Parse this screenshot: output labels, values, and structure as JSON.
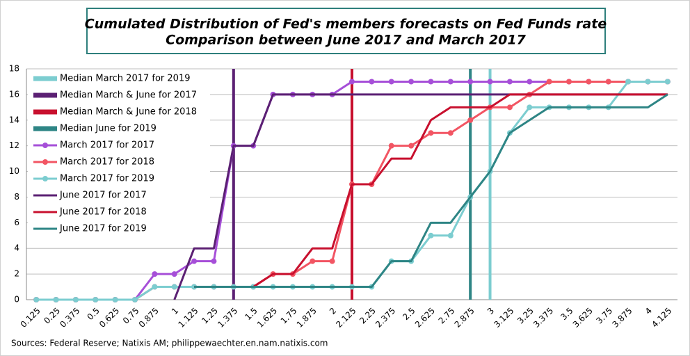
{
  "chart_data": {
    "type": "line",
    "title": "Cumulated Distribution of Fed's members forecasts on Fed Funds rate",
    "subtitle": "Comparison between June 2017 and March 2017",
    "source": "Sources: Federal Reserve; Natixis AM; philippewaechter.en.nam.natixis.com",
    "categories": [
      "0.125",
      "0.25",
      "0.375",
      "0.5",
      "0.625",
      "0.75",
      "0.875",
      "1",
      "1.125",
      "1.25",
      "1.375",
      "1.5",
      "1.625",
      "1.75",
      "1.875",
      "2",
      "2.125",
      "2.25",
      "2.375",
      "2.5",
      "2.625",
      "2.75",
      "2.875",
      "3",
      "3.125",
      "3.25",
      "3.375",
      "3.5",
      "3.625",
      "3.75",
      "3.875",
      "4",
      "4.125"
    ],
    "ylim": [
      0,
      18
    ],
    "yticks": [
      0,
      2,
      4,
      6,
      8,
      10,
      12,
      14,
      16,
      18
    ],
    "grid": true,
    "legend": "upper left",
    "medians": [
      {
        "name": "Median March 2017 for 2019",
        "color": "#7ccdd0",
        "x": 3
      },
      {
        "name": "Median March & June for 2017",
        "color": "#5b2073",
        "x": 1.375
      },
      {
        "name": "Median March & June for 2018",
        "color": "#c8102e",
        "x": 2.125
      },
      {
        "name": "Median June for 2019",
        "color": "#2e8585",
        "x": 2.875
      }
    ],
    "series": [
      {
        "name": "March 2017  for 2017",
        "color": "#a64fd8",
        "markers": true,
        "values": [
          0,
          0,
          0,
          0,
          0,
          0,
          2,
          2,
          3,
          3,
          12,
          12,
          16,
          16,
          16,
          16,
          17,
          17,
          17,
          17,
          17,
          17,
          17,
          17,
          17,
          17,
          17,
          17,
          17,
          17,
          17,
          17,
          17
        ]
      },
      {
        "name": "March 2017  for 2018",
        "color": "#f25563",
        "markers": true,
        "values": [
          0,
          0,
          0,
          0,
          0,
          0,
          1,
          1,
          1,
          1,
          1,
          1,
          2,
          2,
          3,
          3,
          9,
          9,
          12,
          12,
          13,
          13,
          14,
          15,
          15,
          16,
          17,
          17,
          17,
          17,
          17,
          17,
          17
        ]
      },
      {
        "name": "March 2017  for 2019",
        "color": "#7ccdd0",
        "markers": true,
        "values": [
          0,
          0,
          0,
          0,
          0,
          0,
          1,
          1,
          1,
          1,
          1,
          1,
          1,
          1,
          1,
          1,
          1,
          1,
          3,
          3,
          5,
          5,
          8,
          10,
          13,
          15,
          15,
          15,
          15,
          15,
          17,
          17,
          17
        ]
      },
      {
        "name": "June 2017  for 2017",
        "color": "#5b2073",
        "markers": false,
        "values": [
          null,
          null,
          null,
          null,
          null,
          null,
          null,
          0,
          4,
          4,
          12,
          12,
          16,
          16,
          16,
          16,
          16,
          16,
          16,
          16,
          16,
          16,
          16,
          16,
          16,
          16,
          16,
          16,
          16,
          16,
          16,
          16,
          16
        ]
      },
      {
        "name": "June 2017  for 2018",
        "color": "#c8102e",
        "markers": false,
        "values": [
          null,
          null,
          null,
          null,
          null,
          null,
          null,
          null,
          1,
          1,
          1,
          1,
          2,
          2,
          4,
          4,
          9,
          9,
          11,
          11,
          14,
          15,
          15,
          15,
          16,
          16,
          16,
          16,
          16,
          16,
          16,
          16,
          16
        ]
      },
      {
        "name": "June 2017  for 2019",
        "color": "#2e8585",
        "markers": false,
        "values": [
          null,
          null,
          null,
          null,
          null,
          null,
          null,
          null,
          1,
          1,
          1,
          1,
          1,
          1,
          1,
          1,
          1,
          1,
          3,
          3,
          6,
          6,
          8,
          10,
          13,
          14,
          15,
          15,
          15,
          15,
          15,
          15,
          16
        ]
      }
    ]
  }
}
